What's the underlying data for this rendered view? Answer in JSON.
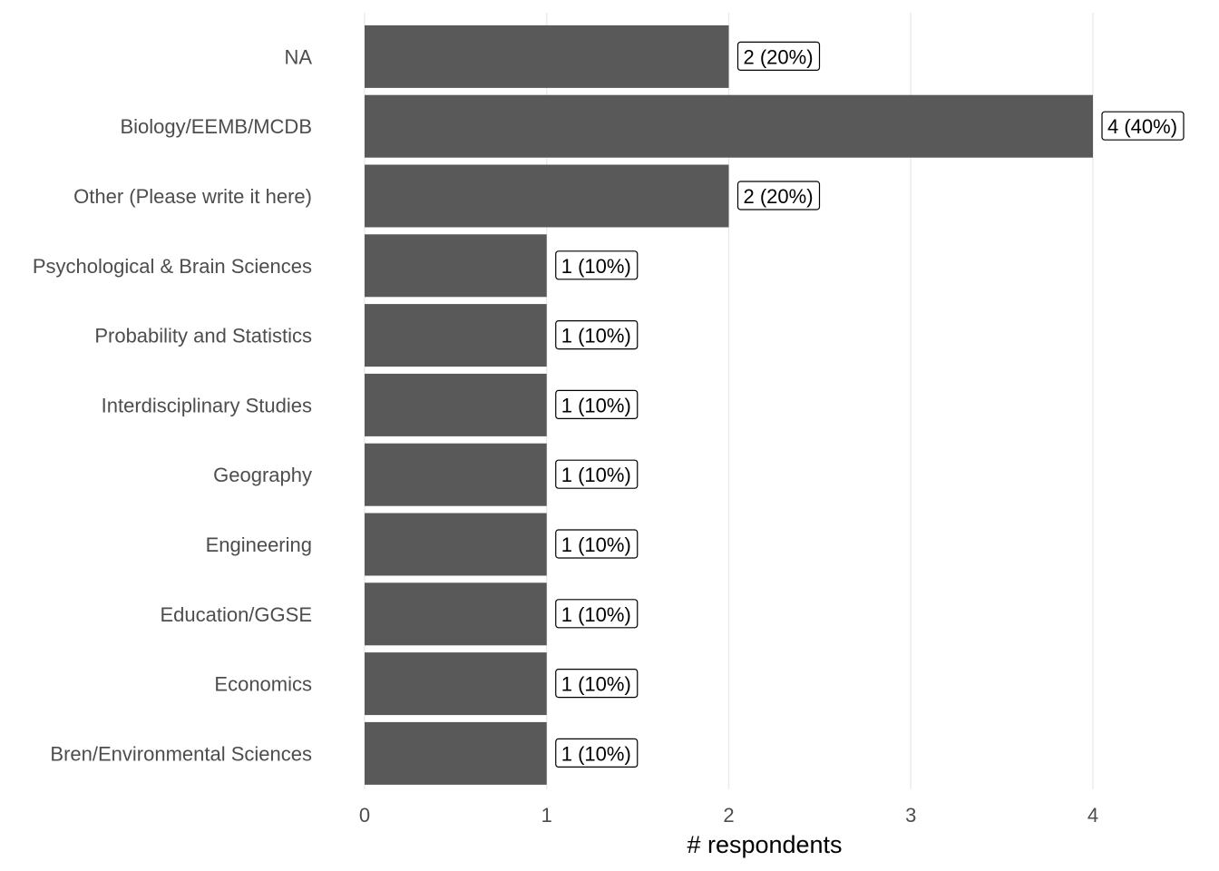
{
  "chart_data": {
    "type": "bar",
    "orientation": "horizontal",
    "categories": [
      "NA",
      "Biology/EEMB/MCDB",
      "Other (Please write it here)",
      "Psychological & Brain Sciences",
      "Probability and Statistics",
      "Interdisciplinary Studies",
      "Geography",
      "Engineering",
      "Education/GGSE",
      "Economics",
      "Bren/Environmental Sciences"
    ],
    "values": [
      2,
      4,
      2,
      1,
      1,
      1,
      1,
      1,
      1,
      1,
      1
    ],
    "data_labels": [
      "2 (20%)",
      "4 (40%)",
      "2 (20%)",
      "1 (10%)",
      "1 (10%)",
      "1 (10%)",
      "1 (10%)",
      "1 (10%)",
      "1 (10%)",
      "1 (10%)",
      "1 (10%)"
    ],
    "title": "",
    "xlabel": "# respondents",
    "ylabel": "",
    "xlim": [
      0,
      4.5
    ],
    "xticks": [
      "0",
      "1",
      "2",
      "3",
      "4"
    ],
    "grid": "vertical",
    "bar_color": "#595959"
  }
}
